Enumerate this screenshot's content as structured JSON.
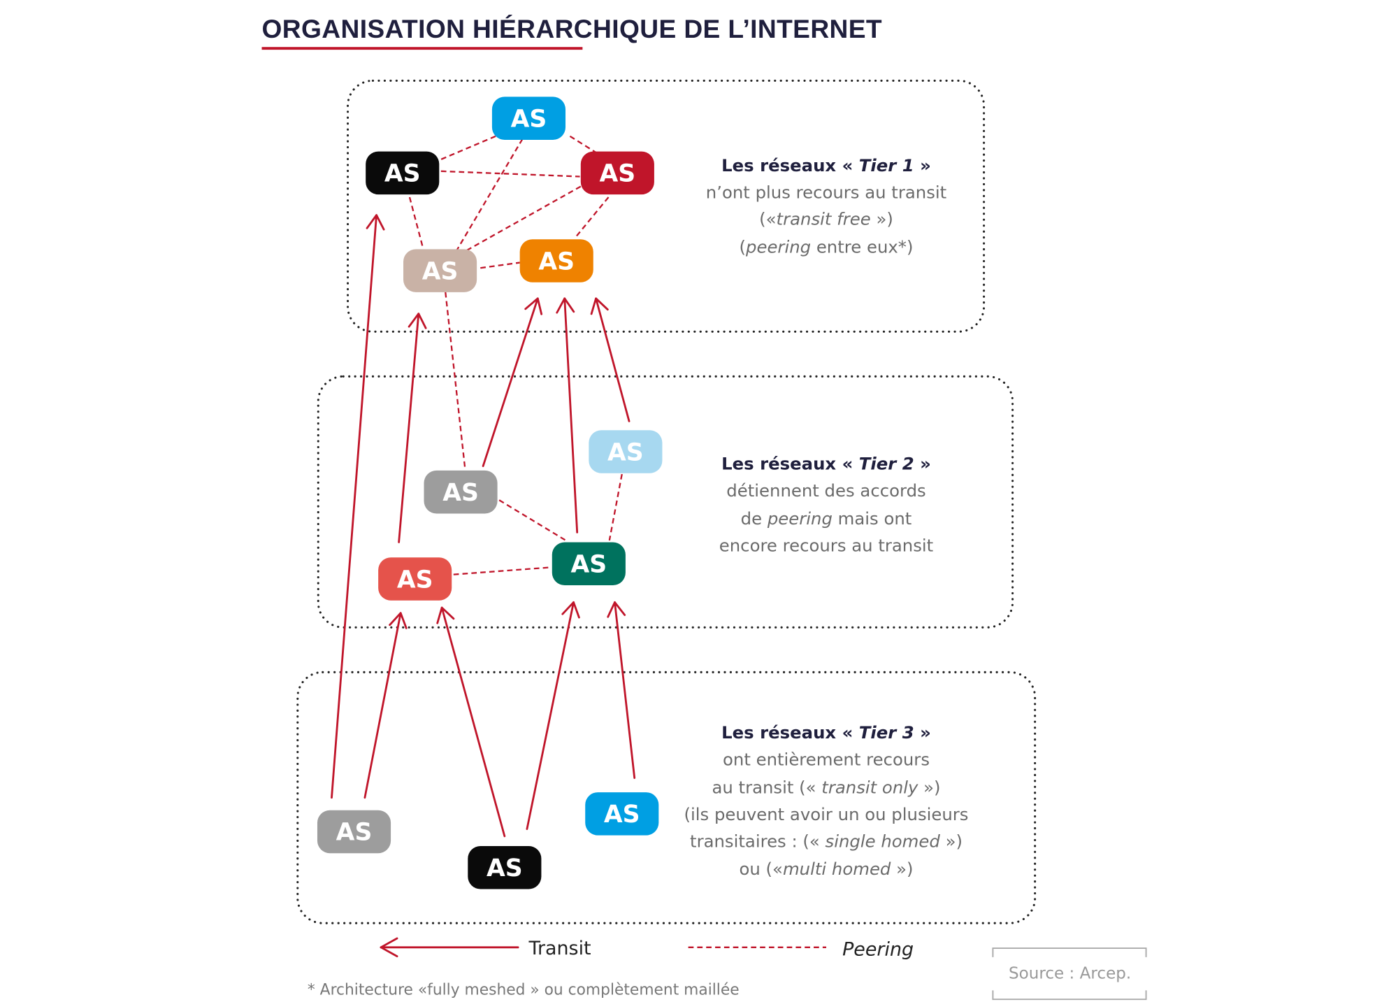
{
  "title": "ORGANISATION HIÉRARCHIQUE DE L’INTERNET",
  "colors": {
    "accent": "#c0152a",
    "title": "#1f1f3d"
  },
  "nodes": [
    {
      "id": "t1-blue",
      "label": "AS",
      "color": "#009fe3",
      "tier": 1
    },
    {
      "id": "t1-black",
      "label": "AS",
      "color": "#0a0a0a",
      "tier": 1
    },
    {
      "id": "t1-red",
      "label": "AS",
      "color": "#c0152a",
      "tier": 1
    },
    {
      "id": "t1-tan",
      "label": "AS",
      "color": "#c9b2a6",
      "tier": 1
    },
    {
      "id": "t1-orange",
      "label": "AS",
      "color": "#ef8200",
      "tier": 1
    },
    {
      "id": "t2-lightblue",
      "label": "AS",
      "color": "#a7d8f0",
      "tier": 2
    },
    {
      "id": "t2-gray",
      "label": "AS",
      "color": "#9d9d9d",
      "tier": 2
    },
    {
      "id": "t2-teal",
      "label": "AS",
      "color": "#00725e",
      "tier": 2
    },
    {
      "id": "t2-coral",
      "label": "AS",
      "color": "#e5534b",
      "tier": 2
    },
    {
      "id": "t3-gray",
      "label": "AS",
      "color": "#9d9d9d",
      "tier": 3
    },
    {
      "id": "t3-black",
      "label": "AS",
      "color": "#0a0a0a",
      "tier": 3
    },
    {
      "id": "t3-blue",
      "label": "AS",
      "color": "#009fe3",
      "tier": 3
    }
  ],
  "peering": [
    [
      "t1-blue",
      "t1-black"
    ],
    [
      "t1-blue",
      "t1-red"
    ],
    [
      "t1-black",
      "t1-red"
    ],
    [
      "t1-blue",
      "t1-tan"
    ],
    [
      "t1-red",
      "t1-tan"
    ],
    [
      "t1-black",
      "t1-tan"
    ],
    [
      "t1-red",
      "t1-orange"
    ],
    [
      "t1-tan",
      "t1-orange"
    ],
    [
      "t1-tan",
      "t2-gray"
    ],
    [
      "t2-gray",
      "t2-teal"
    ],
    [
      "t2-lightblue",
      "t2-teal"
    ],
    [
      "t2-coral",
      "t2-teal"
    ]
  ],
  "transit": [
    [
      "t3-gray",
      "t1-black"
    ],
    [
      "t3-gray",
      "t2-coral"
    ],
    [
      "t2-coral",
      "t1-tan"
    ],
    [
      "t3-black",
      "t2-coral"
    ],
    [
      "t3-black",
      "t2-teal"
    ],
    [
      "t3-blue",
      "t2-teal"
    ],
    [
      "t2-gray",
      "t1-orange"
    ],
    [
      "t2-teal",
      "t1-orange"
    ],
    [
      "t2-lightblue",
      "t1-orange"
    ]
  ],
  "tiers": [
    {
      "lines": [
        [
          {
            "t": "Les réseaux « ",
            "s": "b"
          },
          {
            "t": "Tier 1",
            "s": "bi"
          },
          {
            "t": " »",
            "s": "b"
          }
        ],
        [
          {
            "t": "n’ont plus recours au transit",
            "s": ""
          }
        ],
        [
          {
            "t": "(«",
            "s": ""
          },
          {
            "t": "transit free",
            "s": "i"
          },
          {
            "t": " »)",
            "s": ""
          }
        ],
        [
          {
            "t": "(",
            "s": ""
          },
          {
            "t": "peering",
            "s": "i"
          },
          {
            "t": " entre eux*)",
            "s": ""
          }
        ]
      ]
    },
    {
      "lines": [
        [
          {
            "t": "Les réseaux « ",
            "s": "b"
          },
          {
            "t": "Tier 2",
            "s": "bi"
          },
          {
            "t": " »",
            "s": "b"
          }
        ],
        [
          {
            "t": "détiennent des accords",
            "s": ""
          }
        ],
        [
          {
            "t": "de ",
            "s": ""
          },
          {
            "t": "peering",
            "s": "i"
          },
          {
            "t": " mais ont",
            "s": ""
          }
        ],
        [
          {
            "t": "encore recours au transit",
            "s": ""
          }
        ]
      ]
    },
    {
      "lines": [
        [
          {
            "t": "Les réseaux « ",
            "s": "b"
          },
          {
            "t": "Tier 3",
            "s": "bi"
          },
          {
            "t": " »",
            "s": "b"
          }
        ],
        [
          {
            "t": "ont entièrement recours",
            "s": ""
          }
        ],
        [
          {
            "t": "au transit (« ",
            "s": ""
          },
          {
            "t": "transit only",
            "s": "i"
          },
          {
            "t": " »)",
            "s": ""
          }
        ],
        [
          {
            "t": "(ils peuvent avoir un ou plusieurs",
            "s": ""
          }
        ],
        [
          {
            "t": "transitaires : (« ",
            "s": ""
          },
          {
            "t": "single homed",
            "s": "i"
          },
          {
            "t": " »)",
            "s": ""
          }
        ],
        [
          {
            "t": "ou («",
            "s": ""
          },
          {
            "t": "multi homed",
            "s": "i"
          },
          {
            "t": " »)",
            "s": ""
          }
        ]
      ]
    }
  ],
  "legend": {
    "transit": "Transit",
    "peering": "Peering"
  },
  "footnote": [
    {
      "t": "* Architecture «",
      "s": ""
    },
    {
      "t": "fully meshed",
      "s": "i"
    },
    {
      "t": " » ou complètement maillée",
      "s": ""
    }
  ],
  "source": "Source : Arcep."
}
